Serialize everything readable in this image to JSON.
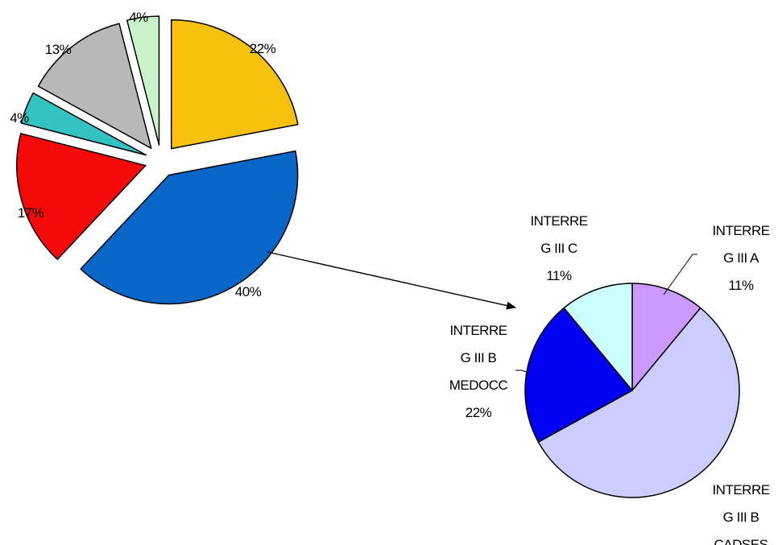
{
  "chart_data": [
    {
      "type": "pie",
      "title": "",
      "slices": [
        {
          "label": "",
          "value": 22,
          "value_label": "22%",
          "color": "#F7C20D",
          "exploded": true
        },
        {
          "label": "",
          "value": 40,
          "value_label": "40%",
          "color": "#0866C6",
          "exploded": true,
          "detail_chart": true
        },
        {
          "label": "",
          "value": 17,
          "value_label": "17%",
          "color": "#F50A0A",
          "exploded": true
        },
        {
          "label": "",
          "value": 4,
          "value_label": "4%",
          "color": "#33C3C3",
          "exploded": true
        },
        {
          "label": "",
          "value": 13,
          "value_label": "13%",
          "color": "#B8B8B8",
          "exploded": true
        },
        {
          "label": "",
          "value": 4,
          "value_label": "4%",
          "color": "#C9F4C9",
          "exploded": true
        }
      ]
    },
    {
      "type": "pie",
      "title": "",
      "slices": [
        {
          "label": "INTERRE G III A",
          "label_lines": [
            "INTERRE",
            "G III A"
          ],
          "value": 11,
          "value_label": "11%",
          "color": "#CC99FF"
        },
        {
          "label": "INTERRE G III B CADSES",
          "label_lines": [
            "INTERRE",
            "G III B",
            "CADSES"
          ],
          "value": 56,
          "value_label": "",
          "color": "#CCCCFF"
        },
        {
          "label": "INTERRE G III B MEDOCC",
          "label_lines": [
            "INTERRE",
            "G III B",
            "MEDOCC"
          ],
          "value": 22,
          "value_label": "22%",
          "color": "#0000F0"
        },
        {
          "label": "INTERRE G III C",
          "label_lines": [
            "INTERRE",
            "G III C"
          ],
          "value": 11,
          "value_label": "11%",
          "color": "#CCFFFF"
        }
      ]
    }
  ]
}
